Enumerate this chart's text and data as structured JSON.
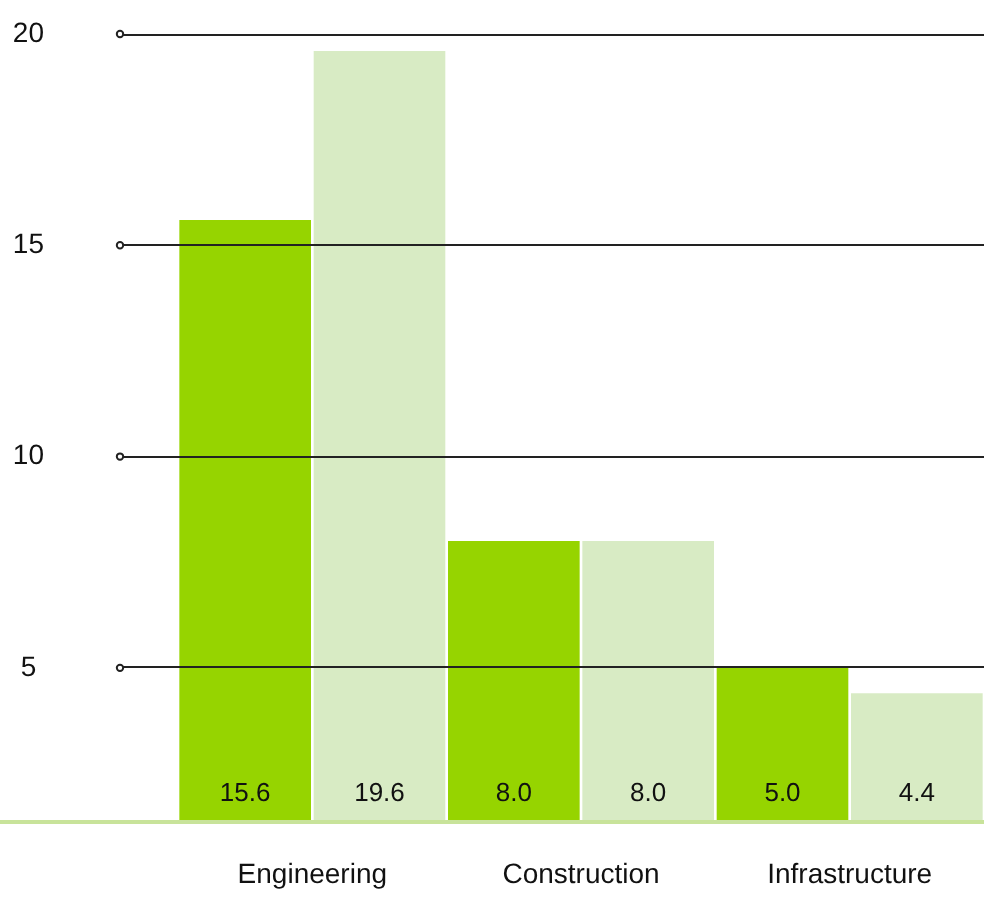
{
  "chart_data": {
    "type": "bar",
    "categories": [
      "Engineering",
      "Construction",
      "Infrastructure"
    ],
    "series": [
      {
        "color": "#96d400",
        "values": [
          15.6,
          8.0,
          5.0
        ],
        "value_labels": [
          "15.6",
          "8.0",
          "5.0"
        ]
      },
      {
        "color": "#d8ebc4",
        "values": [
          19.6,
          8.0,
          4.4
        ],
        "value_labels": [
          "19.6",
          "8.0",
          "4.4"
        ]
      }
    ],
    "ylim": [
      1.4,
      20
    ],
    "yticks": [
      5,
      10,
      15,
      20
    ],
    "grid": "y",
    "legend": false
  }
}
